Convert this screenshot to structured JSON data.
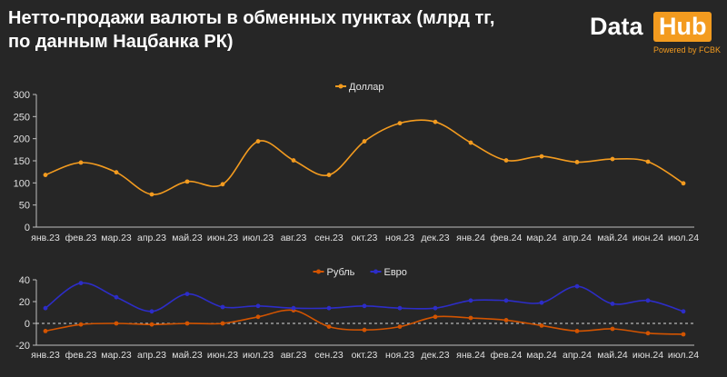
{
  "header": {
    "title_line1": "Нетто-продажи валюты в обменных пунктах (млрд тг,",
    "title_line2": "по данным Нацбанка РК)"
  },
  "logo": {
    "word1": "Data",
    "word2": "Hub",
    "tagline": "Powered by FCBK"
  },
  "colors": {
    "usd": "#f39b1f",
    "rub": "#d35400",
    "eur": "#2d2dc8",
    "background": "#262626"
  },
  "chart_data": [
    {
      "type": "line",
      "title": "",
      "categories": [
        "янв.23",
        "фев.23",
        "мар.23",
        "апр.23",
        "май.23",
        "июн.23",
        "июл.23",
        "авг.23",
        "сен.23",
        "окт.23",
        "ноя.23",
        "дек.23",
        "янв.24",
        "фев.24",
        "мар.24",
        "апр.24",
        "май.24",
        "июн.24",
        "июл.24"
      ],
      "series": [
        {
          "name": "Доллар",
          "values": [
            118,
            146,
            124,
            74,
            103,
            97,
            194,
            151,
            118,
            194,
            235,
            238,
            191,
            151,
            160,
            147,
            154,
            148,
            99
          ]
        }
      ],
      "ylim": [
        0,
        300
      ],
      "yticks": [
        0,
        50,
        100,
        150,
        200,
        250,
        300
      ],
      "legend": "top-center",
      "xlabel": "",
      "ylabel": ""
    },
    {
      "type": "line",
      "title": "",
      "categories": [
        "янв.23",
        "фев.23",
        "мар.23",
        "апр.23",
        "май.23",
        "июн.23",
        "июл.23",
        "авг.23",
        "сен.23",
        "окт.23",
        "ноя.23",
        "дек.23",
        "янв.24",
        "фев.24",
        "мар.24",
        "апр.24",
        "май.24",
        "июн.24",
        "июл.24"
      ],
      "series": [
        {
          "name": "Рубль",
          "values": [
            -7,
            -1,
            0,
            -1,
            0,
            0,
            6,
            12,
            -3,
            -6,
            -3,
            6,
            5,
            3,
            -2,
            -7,
            -5,
            -9,
            -10
          ]
        },
        {
          "name": "Евро",
          "values": [
            14,
            37,
            24,
            11,
            27,
            15,
            16,
            14,
            14,
            16,
            14,
            14,
            21,
            21,
            19,
            34,
            18,
            21,
            11
          ]
        }
      ],
      "ylim": [
        -20,
        40
      ],
      "yticks": [
        -20,
        0,
        20,
        40
      ],
      "legend": "top-center",
      "xlabel": "",
      "ylabel": ""
    }
  ]
}
